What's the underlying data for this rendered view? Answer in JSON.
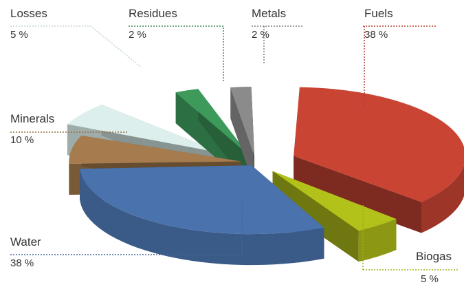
{
  "chart_data": {
    "type": "pie",
    "style": "3d-exploded",
    "slices": [
      {
        "label": "Fuels",
        "value": 38,
        "value_label": "38 %",
        "color": "#c94433"
      },
      {
        "label": "Biogas",
        "value": 5,
        "value_label": "5 %",
        "color": "#b3c21a"
      },
      {
        "label": "Water",
        "value": 38,
        "value_label": "38 %",
        "color": "#4a73ae"
      },
      {
        "label": "Minerals",
        "value": 10,
        "value_label": "10 %",
        "color": "#a67c4e"
      },
      {
        "label": "Losses",
        "value": 5,
        "value_label": "5 %",
        "color": "#dcefec"
      },
      {
        "label": "Residues",
        "value": 2,
        "value_label": "2 %",
        "color": "#3d9a5b"
      },
      {
        "label": "Metals",
        "value": 2,
        "value_label": "2 %",
        "color": "#8b8b8b"
      }
    ],
    "legend": "none",
    "data_labels": "callouts"
  }
}
